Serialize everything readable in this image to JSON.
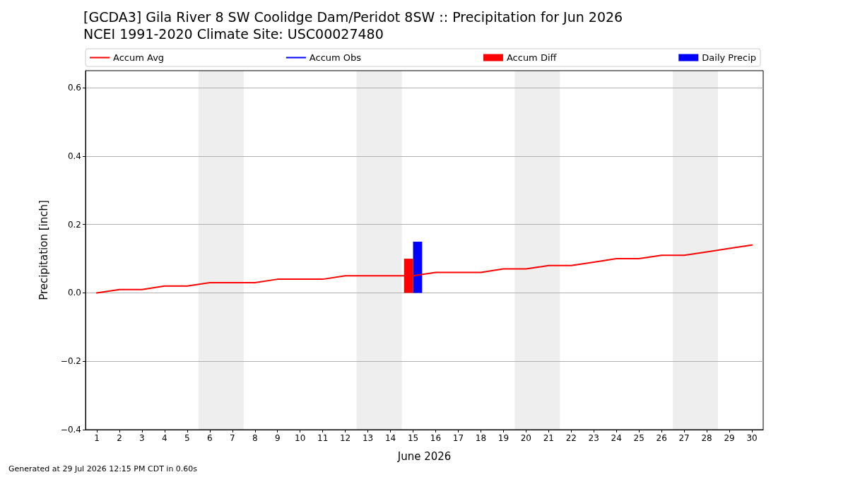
{
  "chart_data": {
    "type": "line",
    "title": "[GCDA3] Gila River 8 SW Coolidge Dam/Peridot 8SW :: Precipitation for Jun 2026",
    "subtitle": "NCEI 1991-2020 Climate Site: USC00027480",
    "xlabel": "June 2026",
    "ylabel": "Precipitation [inch]",
    "annotations": [
      "Generated at 29 Jul 2026 12:15 PM CDT in 0.60s"
    ],
    "x": [
      1,
      2,
      3,
      4,
      5,
      6,
      7,
      8,
      9,
      10,
      11,
      12,
      13,
      14,
      15,
      16,
      17,
      18,
      19,
      20,
      21,
      22,
      23,
      24,
      25,
      26,
      27,
      28,
      29,
      30
    ],
    "xlim": [
      0.5,
      30.5
    ],
    "xticks": [
      1,
      2,
      3,
      4,
      5,
      6,
      7,
      8,
      9,
      10,
      11,
      12,
      13,
      14,
      15,
      16,
      17,
      18,
      19,
      20,
      21,
      22,
      23,
      24,
      25,
      26,
      27,
      28,
      29,
      30
    ],
    "ylim": [
      -0.4,
      0.65
    ],
    "yticks": [
      {
        "value": -0.4,
        "label": "−0.4"
      },
      {
        "value": -0.2,
        "label": "−0.2"
      },
      {
        "value": 0,
        "label": "0.0"
      },
      0.2,
      0.4,
      0.6
    ],
    "grid": "y",
    "legend": "top",
    "marker": "none",
    "bands": [
      {
        "axis": "x",
        "from": 5.5,
        "to": 7.5,
        "color": "#eeeeee"
      },
      {
        "axis": "x",
        "from": 12.5,
        "to": 14.5,
        "color": "#eeeeee"
      },
      {
        "axis": "x",
        "from": 19.5,
        "to": 21.5,
        "color": "#eeeeee"
      },
      {
        "axis": "x",
        "from": 26.5,
        "to": 28.5,
        "color": "#eeeeee"
      }
    ],
    "series": [
      {
        "name": "Accum Avg",
        "color": "#ff0000",
        "values": [
          0.0,
          0.01,
          0.01,
          0.02,
          0.02,
          0.03,
          0.03,
          0.03,
          0.04,
          0.04,
          0.04,
          0.05,
          0.05,
          0.05,
          0.05,
          0.06,
          0.06,
          0.06,
          0.07,
          0.07,
          0.08,
          0.08,
          0.09,
          0.1,
          0.1,
          0.11,
          0.11,
          0.12,
          0.13,
          0.14
        ]
      },
      {
        "name": "Accum Obs",
        "color": "#0000ff",
        "values": [
          null,
          null,
          null,
          null,
          null,
          null,
          null,
          null,
          null,
          null,
          null,
          null,
          null,
          null,
          null,
          null,
          null,
          null,
          null,
          null,
          null,
          null,
          null,
          null,
          null,
          null,
          null,
          null,
          null,
          null
        ]
      },
      {
        "name": "Accum Diff",
        "type": "bar",
        "color": "#ff0000",
        "values": [
          null,
          null,
          null,
          null,
          null,
          null,
          null,
          null,
          null,
          null,
          null,
          null,
          null,
          null,
          0.1,
          null,
          null,
          null,
          null,
          null,
          null,
          null,
          null,
          null,
          null,
          null,
          null,
          null,
          null,
          null
        ]
      },
      {
        "name": "Daily Precip",
        "type": "bar",
        "color": "#0000ff",
        "values": [
          null,
          null,
          null,
          null,
          null,
          null,
          null,
          null,
          null,
          null,
          null,
          null,
          null,
          null,
          0.15,
          null,
          null,
          null,
          null,
          null,
          null,
          null,
          null,
          null,
          null,
          null,
          null,
          null,
          null,
          null
        ]
      }
    ]
  }
}
